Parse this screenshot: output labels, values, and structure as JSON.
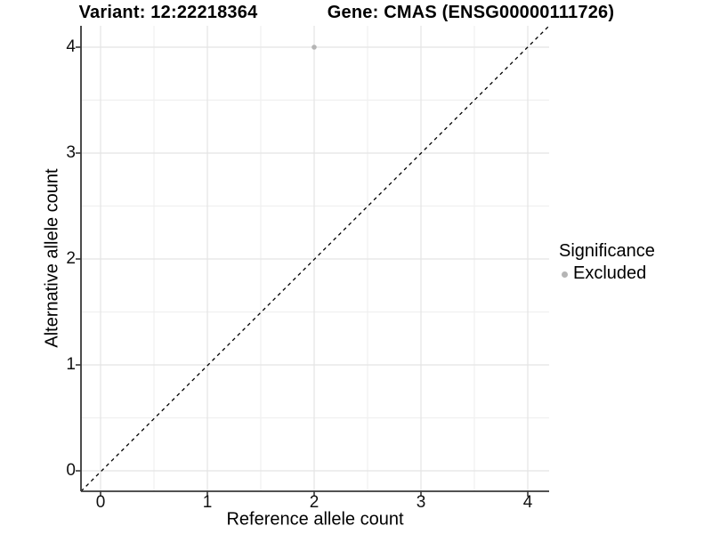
{
  "titles": {
    "variant": "Variant: 12:22218364",
    "gene": "Gene: CMAS (ENSG00000111726)"
  },
  "axes": {
    "x": {
      "label": "Reference allele count",
      "tick_labels": [
        "0",
        "1",
        "2",
        "3",
        "4"
      ]
    },
    "y": {
      "label": "Alternative allele count",
      "tick_labels": [
        "0",
        "1",
        "2",
        "3",
        "4"
      ]
    }
  },
  "legend": {
    "title": "Significance",
    "items": [
      {
        "label": "Excluded",
        "color": "#b5b5b5",
        "marker": "circle-icon"
      }
    ]
  },
  "colors": {
    "point_excluded": "#b5b5b5",
    "axis_line": "#383838",
    "grid_major": "#e4e4e4",
    "grid_minor": "#f0f0f0",
    "reference_line": "#000000",
    "background": "#ffffff"
  },
  "chart_data": {
    "type": "scatter",
    "title": "Variant: 12:22218364 | Gene: CMAS (ENSG00000111726)",
    "xlabel": "Reference allele count",
    "ylabel": "Alternative allele count",
    "xlim": [
      -0.2,
      4.2
    ],
    "ylim": [
      -0.2,
      4.2
    ],
    "x_ticks": [
      0,
      1,
      2,
      3,
      4
    ],
    "y_ticks": [
      0,
      1,
      2,
      3,
      4
    ],
    "grid": true,
    "grid_minor": true,
    "legend_position": "right",
    "series": [
      {
        "name": "Excluded",
        "color": "#b5b5b5",
        "points": [
          {
            "x": 2,
            "y": 4
          }
        ]
      }
    ],
    "reference_line": {
      "kind": "identity y=x",
      "style": "dashed",
      "color": "#000000",
      "from": [
        -0.2,
        -0.2
      ],
      "to": [
        4.2,
        4.2
      ]
    }
  }
}
